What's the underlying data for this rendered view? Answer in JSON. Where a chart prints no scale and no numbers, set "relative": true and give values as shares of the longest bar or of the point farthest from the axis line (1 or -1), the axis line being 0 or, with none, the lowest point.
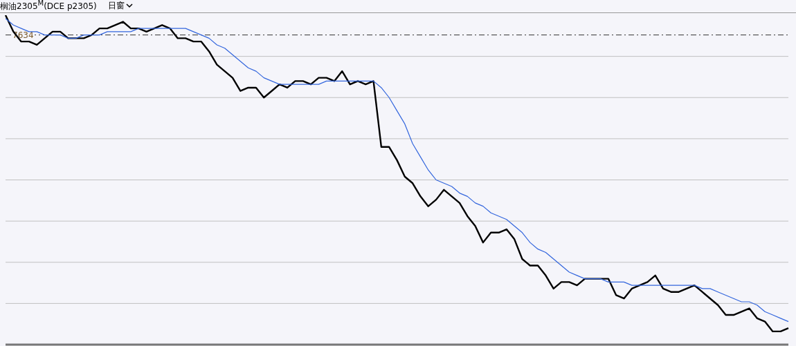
{
  "chart_data": {
    "type": "line",
    "title": "榈油2305$^{M}$(DCE p2305)",
    "annotations": [
      "日窗",
      "7634"
    ],
    "relative": true,
    "grid": "y",
    "legend": false,
    "marker": "none",
    "categories": [
      null,
      null,
      null,
      null,
      null,
      null,
      null,
      null,
      null,
      null,
      null,
      null,
      null,
      null,
      null,
      null,
      null,
      null,
      null,
      null,
      null,
      null,
      null,
      null,
      null,
      null,
      null,
      null,
      null,
      null,
      null,
      null,
      null,
      null,
      null,
      null,
      null,
      null,
      null,
      null,
      null,
      null,
      null,
      null,
      null,
      null,
      null,
      null,
      null,
      null,
      null,
      null,
      null,
      null,
      null,
      null,
      null,
      null,
      null,
      null,
      null,
      null,
      null,
      null,
      null,
      null,
      null,
      null,
      null,
      null,
      null,
      null,
      null,
      null,
      null,
      null,
      null,
      null,
      null,
      null,
      null,
      null,
      null,
      null,
      null,
      null,
      null,
      null,
      null,
      null,
      null,
      null,
      null,
      null,
      null,
      null,
      null,
      null,
      null,
      null,
      null
    ],
    "series": [
      {
        "color": "#000000",
        "line_style": "solid",
        "values": [
          1.0,
          0.95,
          0.92,
          0.92,
          0.91,
          0.93,
          0.95,
          0.95,
          0.93,
          0.93,
          0.93,
          0.94,
          0.96,
          0.96,
          0.97,
          0.98,
          0.96,
          0.96,
          0.95,
          0.96,
          0.97,
          0.96,
          0.93,
          0.93,
          0.92,
          0.92,
          0.89,
          0.85,
          0.83,
          0.81,
          0.77,
          0.78,
          0.78,
          0.75,
          0.77,
          0.79,
          0.78,
          0.8,
          0.8,
          0.79,
          0.81,
          0.81,
          0.8,
          0.83,
          0.79,
          0.8,
          0.79,
          0.8,
          0.6,
          0.6,
          0.56,
          0.51,
          0.49,
          0.45,
          0.42,
          0.44,
          0.47,
          0.45,
          0.43,
          0.39,
          0.36,
          0.31,
          0.34,
          0.34,
          0.35,
          0.32,
          0.26,
          0.24,
          0.24,
          0.21,
          0.17,
          0.19,
          0.19,
          0.18,
          0.2,
          0.2,
          0.2,
          0.2,
          0.15,
          0.14,
          0.17,
          0.18,
          0.19,
          0.21,
          0.17,
          0.16,
          0.16,
          0.17,
          0.18,
          0.16,
          0.14,
          0.12,
          0.09,
          0.09,
          0.1,
          0.11,
          0.08,
          0.07,
          0.04,
          0.04,
          0.05
        ]
      },
      {
        "color": "#3366dd",
        "line_style": "solid",
        "values": [
          0.99,
          0.97,
          0.96,
          0.95,
          0.95,
          0.94,
          0.94,
          0.94,
          0.93,
          0.93,
          0.94,
          0.94,
          0.94,
          0.95,
          0.95,
          0.95,
          0.95,
          0.96,
          0.96,
          0.96,
          0.96,
          0.96,
          0.96,
          0.96,
          0.95,
          0.94,
          0.93,
          0.91,
          0.9,
          0.88,
          0.86,
          0.84,
          0.83,
          0.81,
          0.8,
          0.79,
          0.79,
          0.79,
          0.79,
          0.79,
          0.79,
          0.8,
          0.8,
          0.8,
          0.8,
          0.8,
          0.8,
          0.8,
          0.78,
          0.75,
          0.71,
          0.67,
          0.61,
          0.57,
          0.53,
          0.5,
          0.49,
          0.48,
          0.46,
          0.45,
          0.43,
          0.42,
          0.4,
          0.39,
          0.38,
          0.36,
          0.34,
          0.31,
          0.29,
          0.28,
          0.26,
          0.24,
          0.22,
          0.21,
          0.2,
          0.2,
          0.2,
          0.19,
          0.19,
          0.19,
          0.18,
          0.18,
          0.18,
          0.18,
          0.18,
          0.18,
          0.18,
          0.18,
          0.18,
          0.17,
          0.17,
          0.16,
          0.15,
          0.14,
          0.13,
          0.13,
          0.12,
          0.1,
          0.09,
          0.08,
          0.07
        ]
      }
    ],
    "ref_lines": [
      {
        "axis": "y",
        "value": 0.94,
        "color": "#333333",
        "line_style": "dashed"
      }
    ]
  }
}
